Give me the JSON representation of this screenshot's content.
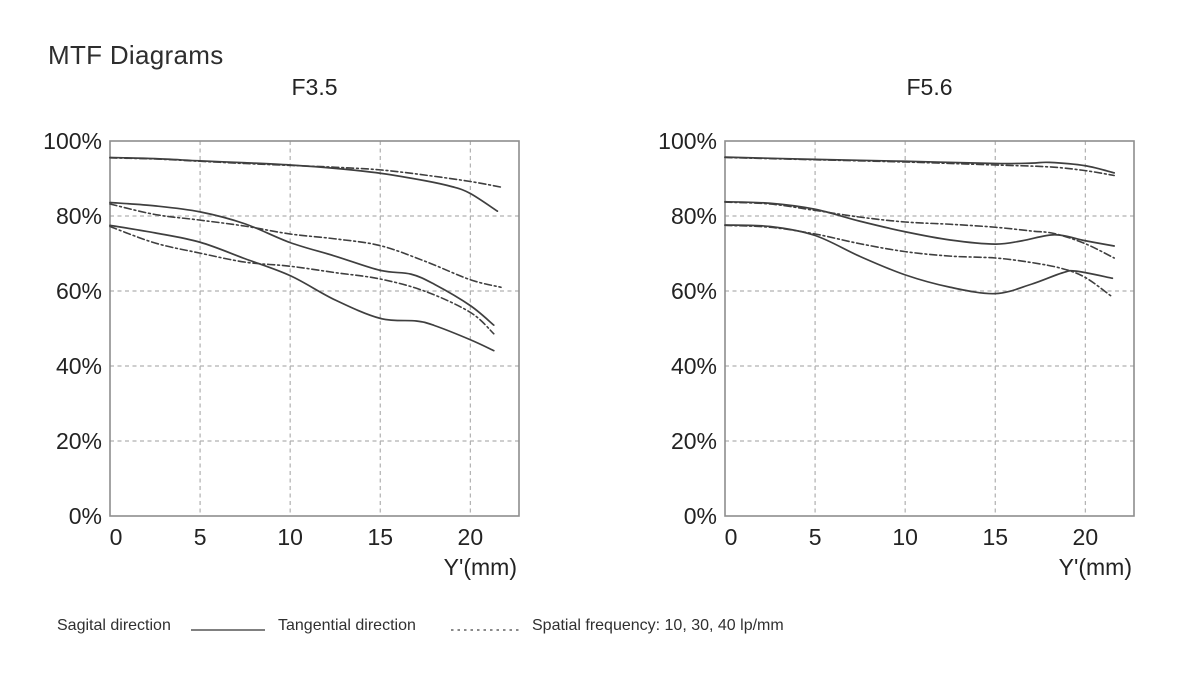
{
  "title": "MTF Diagrams",
  "legend": {
    "sagittal_label": "Sagital direction",
    "tangential_label": "Tangential direction",
    "spatial_frequency_label": "Spatial frequency: 10, 30, 40 lp/mm",
    "solid_sample_meaning": "solid-line",
    "dotted_sample_meaning": "dotted-line"
  },
  "colors": {
    "background": "#ffffff",
    "curve": "#3f3f3f",
    "plot_border": "#8e8e8e",
    "gridline": "#b0b0b0",
    "text": "#232323",
    "legend_line": "#6e6e6e"
  },
  "chart_data": [
    {
      "type": "line",
      "title": "F3.5",
      "xlabel": "Y'(mm)",
      "ylabel": "",
      "xlim": [
        0,
        22.7
      ],
      "ylim": [
        0,
        100
      ],
      "grid": true,
      "x_ticks": [
        {
          "label": "0",
          "value": 0
        },
        {
          "label": "5",
          "value": 5
        },
        {
          "label": "10",
          "value": 10
        },
        {
          "label": "15",
          "value": 15
        },
        {
          "label": "20",
          "value": 20
        }
      ],
      "y_ticks": [
        {
          "label": "100%",
          "value": 100
        },
        {
          "label": "80%",
          "value": 80
        },
        {
          "label": "60%",
          "value": 60
        },
        {
          "label": "40%",
          "value": 40
        },
        {
          "label": "20%",
          "value": 20
        },
        {
          "label": "0%",
          "value": 0
        }
      ],
      "series": [
        {
          "name": "Sagittal 10 lp/mm",
          "direction": "sagittal",
          "frequency_lp_mm": 10,
          "style": "solid",
          "points": [
            [
              0,
              95.6
            ],
            [
              2.5,
              95.3
            ],
            [
              5,
              94.7
            ],
            [
              7.5,
              94.2
            ],
            [
              10,
              93.6
            ],
            [
              12.5,
              92.7
            ],
            [
              15,
              91.4
            ],
            [
              17.5,
              89.4
            ],
            [
              19,
              87.8
            ],
            [
              20,
              86.0
            ],
            [
              21.5,
              81.3
            ]
          ]
        },
        {
          "name": "Tangential 10 lp/mm",
          "direction": "tangential",
          "frequency_lp_mm": 10,
          "style": "dashed",
          "points": [
            [
              0,
              95.5
            ],
            [
              2.5,
              95.2
            ],
            [
              5,
              94.6
            ],
            [
              7.5,
              94.0
            ],
            [
              10,
              93.5
            ],
            [
              12.5,
              93.0
            ],
            [
              15,
              92.3
            ],
            [
              17.5,
              90.9
            ],
            [
              20,
              89.2
            ],
            [
              21.7,
              87.7
            ]
          ]
        },
        {
          "name": "Sagittal 30 lp/mm",
          "direction": "sagittal",
          "frequency_lp_mm": 30,
          "style": "solid",
          "points": [
            [
              0,
              83.6
            ],
            [
              2.5,
              82.7
            ],
            [
              5,
              81.1
            ],
            [
              7.5,
              77.9
            ],
            [
              10,
              72.9
            ],
            [
              12.5,
              69.3
            ],
            [
              15,
              65.5
            ],
            [
              16.7,
              64.5
            ],
            [
              18,
              61.8
            ],
            [
              20,
              56.1
            ],
            [
              21.3,
              50.9
            ]
          ]
        },
        {
          "name": "Tangential 30 lp/mm",
          "direction": "tangential",
          "frequency_lp_mm": 30,
          "style": "dashed",
          "points": [
            [
              0,
              83.2
            ],
            [
              2.5,
              80.4
            ],
            [
              5,
              78.9
            ],
            [
              7.5,
              77.3
            ],
            [
              10,
              75.2
            ],
            [
              12.5,
              73.9
            ],
            [
              15,
              72.1
            ],
            [
              17.5,
              67.9
            ],
            [
              20,
              63.0
            ],
            [
              21.7,
              61.0
            ]
          ]
        },
        {
          "name": "Sagittal 40 lp/mm",
          "direction": "sagittal",
          "frequency_lp_mm": 40,
          "style": "solid",
          "points": [
            [
              0,
              77.5
            ],
            [
              2.5,
              75.5
            ],
            [
              5,
              73.0
            ],
            [
              7.5,
              68.6
            ],
            [
              10,
              64.1
            ],
            [
              12.5,
              57.6
            ],
            [
              15,
              52.7
            ],
            [
              17,
              52.0
            ],
            [
              18,
              50.8
            ],
            [
              20,
              47.0
            ],
            [
              21.3,
              44.1
            ]
          ]
        },
        {
          "name": "Tangential 40 lp/mm",
          "direction": "tangential",
          "frequency_lp_mm": 40,
          "style": "dashed",
          "points": [
            [
              0,
              77.2
            ],
            [
              2.5,
              72.8
            ],
            [
              5,
              70.1
            ],
            [
              7.5,
              67.7
            ],
            [
              10,
              66.6
            ],
            [
              12.5,
              64.9
            ],
            [
              15,
              63.2
            ],
            [
              17.5,
              59.9
            ],
            [
              20,
              54.3
            ],
            [
              21.3,
              48.6
            ]
          ]
        }
      ]
    },
    {
      "type": "line",
      "title": "F5.6",
      "xlabel": "Y'(mm)",
      "ylabel": "",
      "xlim": [
        0,
        22.7
      ],
      "ylim": [
        0,
        100
      ],
      "grid": true,
      "x_ticks": [
        {
          "label": "0",
          "value": 0
        },
        {
          "label": "5",
          "value": 5
        },
        {
          "label": "10",
          "value": 10
        },
        {
          "label": "15",
          "value": 15
        },
        {
          "label": "20",
          "value": 20
        }
      ],
      "y_ticks": [
        {
          "label": "100%",
          "value": 100
        },
        {
          "label": "80%",
          "value": 80
        },
        {
          "label": "60%",
          "value": 60
        },
        {
          "label": "40%",
          "value": 40
        },
        {
          "label": "20%",
          "value": 20
        },
        {
          "label": "0%",
          "value": 0
        }
      ],
      "series": [
        {
          "name": "Sagittal 10 lp/mm",
          "direction": "sagittal",
          "frequency_lp_mm": 10,
          "style": "solid",
          "points": [
            [
              0,
              95.7
            ],
            [
              5,
              95.1
            ],
            [
              10,
              94.6
            ],
            [
              15,
              94.0
            ],
            [
              17,
              94.1
            ],
            [
              18,
              94.3
            ],
            [
              20,
              93.4
            ],
            [
              21.6,
              91.5
            ]
          ]
        },
        {
          "name": "Tangential 10 lp/mm",
          "direction": "tangential",
          "frequency_lp_mm": 10,
          "style": "dashed",
          "points": [
            [
              0,
              95.6
            ],
            [
              5,
              95.0
            ],
            [
              10,
              94.4
            ],
            [
              15,
              93.6
            ],
            [
              18,
              93.1
            ],
            [
              20,
              92.1
            ],
            [
              21.6,
              90.8
            ]
          ]
        },
        {
          "name": "Sagittal 30 lp/mm",
          "direction": "sagittal",
          "frequency_lp_mm": 30,
          "style": "solid",
          "points": [
            [
              0,
              83.8
            ],
            [
              2.5,
              83.4
            ],
            [
              5,
              81.8
            ],
            [
              7.5,
              78.6
            ],
            [
              10,
              75.8
            ],
            [
              12.5,
              73.6
            ],
            [
              15,
              72.5
            ],
            [
              16.5,
              73.4
            ],
            [
              18.3,
              75.0
            ],
            [
              20,
              73.4
            ],
            [
              21.6,
              72.0
            ]
          ]
        },
        {
          "name": "Tangential 30 lp/mm",
          "direction": "tangential",
          "frequency_lp_mm": 30,
          "style": "dashed",
          "points": [
            [
              0,
              83.7
            ],
            [
              2.5,
              83.2
            ],
            [
              5,
              81.5
            ],
            [
              7.5,
              79.7
            ],
            [
              10,
              78.4
            ],
            [
              12.5,
              77.8
            ],
            [
              15,
              77.0
            ],
            [
              17,
              76.0
            ],
            [
              18.3,
              75.3
            ],
            [
              20,
              72.6
            ],
            [
              21.6,
              68.8
            ]
          ]
        },
        {
          "name": "Sagittal 40 lp/mm",
          "direction": "sagittal",
          "frequency_lp_mm": 40,
          "style": "solid",
          "points": [
            [
              0,
              77.6
            ],
            [
              2.5,
              77.2
            ],
            [
              5,
              74.8
            ],
            [
              7.5,
              69.2
            ],
            [
              10,
              64.3
            ],
            [
              12.5,
              61.0
            ],
            [
              15,
              59.3
            ],
            [
              17,
              61.8
            ],
            [
              18.7,
              64.8
            ],
            [
              19.5,
              65.3
            ],
            [
              21.5,
              63.4
            ]
          ]
        },
        {
          "name": "Tangential 40 lp/mm",
          "direction": "tangential",
          "frequency_lp_mm": 40,
          "style": "dashed",
          "points": [
            [
              0,
              77.5
            ],
            [
              2.5,
              77.0
            ],
            [
              5,
              75.2
            ],
            [
              7.5,
              72.6
            ],
            [
              10,
              70.5
            ],
            [
              12.5,
              69.3
            ],
            [
              15,
              68.8
            ],
            [
              17,
              67.6
            ],
            [
              18.7,
              66.0
            ],
            [
              20,
              63.6
            ],
            [
              21.5,
              58.4
            ]
          ]
        }
      ]
    }
  ]
}
